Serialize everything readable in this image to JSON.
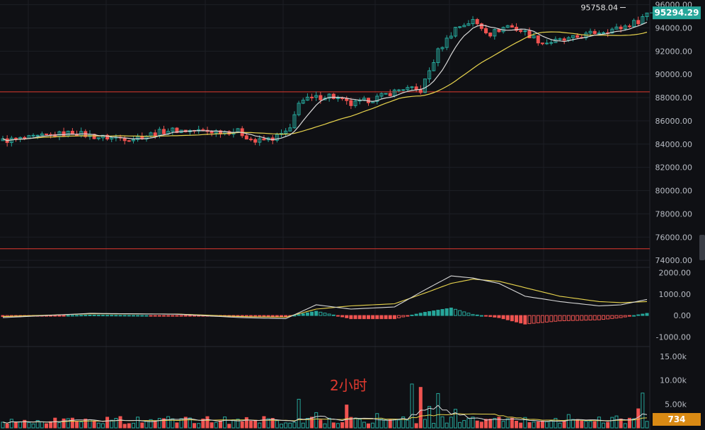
{
  "colors": {
    "background": "#0f1014",
    "up": "#26a69a",
    "down": "#ef5350",
    "ma_fast": "#d8d8d8",
    "ma_slow": "#e8d44d",
    "level_line": "#e0392f",
    "price_tag": "#26a69a",
    "volume_tag": "#d98a14",
    "grid": "#1c1e24"
  },
  "chart_data": [
    {
      "type": "candlestick",
      "panel": "price",
      "timeframe_label": "2小时",
      "ylim": [
        73400,
        96400
      ],
      "ytick_labels": [
        "96000.00",
        "94000.00",
        "92000.00",
        "90000.00",
        "88000.00",
        "86000.00",
        "84000.00",
        "82000.00",
        "80000.00",
        "78000.00",
        "76000.00",
        "74000.00"
      ],
      "current_price_label": "95294.29",
      "high_label": "95758.04",
      "high_value": 95758.04,
      "level_lines": [
        88500,
        75000
      ],
      "anchors": [
        [
          0,
          84300
        ],
        [
          6,
          84500
        ],
        [
          10,
          84700
        ],
        [
          16,
          85000
        ],
        [
          22,
          84600
        ],
        [
          30,
          84500
        ],
        [
          38,
          85200
        ],
        [
          48,
          85100
        ],
        [
          54,
          85100
        ],
        [
          58,
          84200
        ],
        [
          62,
          84500
        ],
        [
          66,
          85200
        ],
        [
          68,
          87700
        ],
        [
          75,
          88200
        ],
        [
          80,
          87400
        ],
        [
          86,
          88000
        ],
        [
          92,
          88800
        ],
        [
          96,
          88600
        ],
        [
          100,
          92000
        ],
        [
          104,
          94000
        ],
        [
          108,
          94600
        ],
        [
          112,
          93500
        ],
        [
          116,
          94200
        ],
        [
          120,
          93600
        ],
        [
          124,
          92700
        ],
        [
          130,
          93000
        ],
        [
          136,
          93600
        ],
        [
          142,
          94000
        ],
        [
          146,
          94600
        ],
        [
          148,
          95294
        ]
      ],
      "candle_count": 149
    },
    {
      "type": "macd",
      "panel": "indicator",
      "ylim": [
        -1450,
        2250
      ],
      "ytick_labels": [
        "2000.00",
        "1000.00",
        "0.00",
        "-1000.00"
      ],
      "macd_anchors": [
        [
          0,
          -100
        ],
        [
          20,
          100
        ],
        [
          40,
          60
        ],
        [
          55,
          -100
        ],
        [
          65,
          -150
        ],
        [
          72,
          500
        ],
        [
          80,
          300
        ],
        [
          90,
          400
        ],
        [
          97,
          1200
        ],
        [
          103,
          1850
        ],
        [
          108,
          1750
        ],
        [
          114,
          1500
        ],
        [
          120,
          900
        ],
        [
          128,
          650
        ],
        [
          137,
          450
        ],
        [
          142,
          500
        ],
        [
          148,
          750
        ]
      ],
      "signal_anchors": [
        [
          0,
          -50
        ],
        [
          20,
          80
        ],
        [
          40,
          70
        ],
        [
          55,
          -50
        ],
        [
          65,
          -80
        ],
        [
          72,
          300
        ],
        [
          80,
          450
        ],
        [
          90,
          550
        ],
        [
          97,
          1050
        ],
        [
          103,
          1500
        ],
        [
          108,
          1700
        ],
        [
          114,
          1600
        ],
        [
          120,
          1300
        ],
        [
          128,
          900
        ],
        [
          137,
          650
        ],
        [
          142,
          600
        ],
        [
          148,
          650
        ]
      ]
    },
    {
      "type": "volume",
      "panel": "volume",
      "ylim": [
        0,
        17500
      ],
      "ytick_labels": [
        "15.00k",
        "10.00k",
        "5.00k"
      ],
      "current_volume_label": "734",
      "spikes": [
        [
          26,
          2000
        ],
        [
          68,
          6000
        ],
        [
          72,
          3200
        ],
        [
          79,
          4800
        ],
        [
          86,
          3000
        ],
        [
          94,
          9200
        ],
        [
          96,
          8500
        ],
        [
          98,
          4500
        ],
        [
          100,
          7200
        ],
        [
          104,
          3900
        ],
        [
          130,
          2800
        ],
        [
          141,
          2500
        ],
        [
          146,
          4000
        ],
        [
          147,
          7300
        ]
      ],
      "baseline": 1500
    }
  ]
}
